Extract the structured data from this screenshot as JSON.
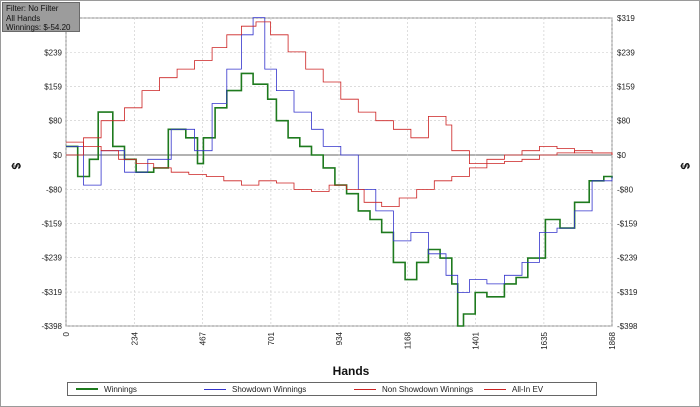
{
  "info_box": {
    "filter": "Filter: No Filter",
    "hands": "All Hands",
    "winnings": "Winnings: $-54.20"
  },
  "chart_data": {
    "type": "line",
    "title": "",
    "xlabel": "Hands",
    "ylabel": "$",
    "xlim": [
      0,
      1868
    ],
    "ylim": [
      -398,
      319
    ],
    "x_ticks": [
      0,
      234,
      467,
      701,
      934,
      1168,
      1401,
      1635,
      1868
    ],
    "y_ticks": [
      -398,
      -319,
      -239,
      -159,
      -80,
      0,
      80,
      159,
      239,
      319
    ],
    "y_tick_labels": [
      "-$398",
      "-$319",
      "-$239",
      "-$159",
      "-$80",
      "$0",
      "$80",
      "$159",
      "$239",
      "$319"
    ],
    "grid": true,
    "legend_position": "bottom",
    "series": [
      {
        "name": "Winnings",
        "color": "#1e7a1e",
        "x": [
          0,
          40,
          80,
          110,
          160,
          200,
          240,
          300,
          350,
          410,
          450,
          470,
          510,
          550,
          600,
          640,
          690,
          720,
          760,
          800,
          840,
          880,
          920,
          960,
          1000,
          1040,
          1080,
          1120,
          1160,
          1200,
          1240,
          1280,
          1320,
          1340,
          1360,
          1400,
          1440,
          1500,
          1540,
          1580,
          1640,
          1690,
          1740,
          1790,
          1840,
          1868
        ],
        "values": [
          20,
          -50,
          -10,
          100,
          20,
          -10,
          -40,
          -30,
          60,
          40,
          -20,
          40,
          110,
          150,
          190,
          165,
          130,
          80,
          40,
          20,
          0,
          -30,
          -70,
          -90,
          -130,
          -150,
          -180,
          -250,
          -290,
          -250,
          -220,
          -240,
          -300,
          -398,
          -370,
          -320,
          -330,
          -300,
          -285,
          -240,
          -150,
          -170,
          -110,
          -60,
          -50,
          -54
        ]
      },
      {
        "name": "Showdown Winnings",
        "color": "#3333cc",
        "x": [
          0,
          60,
          120,
          200,
          280,
          360,
          440,
          500,
          550,
          600,
          640,
          680,
          720,
          780,
          840,
          880,
          940,
          1000,
          1060,
          1120,
          1180,
          1240,
          1300,
          1340,
          1380,
          1440,
          1500,
          1560,
          1620,
          1680,
          1740,
          1800,
          1868
        ],
        "values": [
          20,
          -70,
          10,
          -40,
          -10,
          60,
          10,
          120,
          200,
          280,
          320,
          200,
          150,
          100,
          60,
          20,
          0,
          -80,
          -130,
          -200,
          -180,
          -230,
          -280,
          -320,
          -290,
          -300,
          -280,
          -250,
          -180,
          -170,
          -130,
          -60,
          -50
        ]
      },
      {
        "name": "Non Showdown Winnings",
        "color": "#cc2222",
        "x": [
          0,
          60,
          120,
          200,
          260,
          320,
          380,
          440,
          500,
          550,
          600,
          650,
          700,
          760,
          820,
          880,
          940,
          1000,
          1060,
          1120,
          1180,
          1240,
          1300,
          1320,
          1380,
          1440,
          1500,
          1560,
          1620,
          1680,
          1740,
          1800,
          1868
        ],
        "values": [
          0,
          40,
          80,
          110,
          150,
          180,
          200,
          220,
          250,
          280,
          300,
          310,
          280,
          240,
          200,
          170,
          130,
          100,
          80,
          60,
          40,
          90,
          70,
          10,
          -20,
          -10,
          0,
          10,
          20,
          15,
          5,
          5,
          0
        ]
      },
      {
        "name": "All-In EV",
        "color": "#cc2222",
        "x": [
          0,
          60,
          120,
          180,
          240,
          300,
          360,
          420,
          480,
          540,
          600,
          660,
          720,
          780,
          840,
          900,
          960,
          1020,
          1080,
          1140,
          1200,
          1260,
          1320,
          1380,
          1440,
          1500,
          1560,
          1620,
          1680,
          1740,
          1800,
          1868
        ],
        "values": [
          30,
          20,
          10,
          -10,
          -20,
          -30,
          -40,
          -45,
          -50,
          -60,
          -70,
          -60,
          -65,
          -80,
          -85,
          -70,
          -80,
          -110,
          -120,
          -100,
          -80,
          -60,
          -50,
          -30,
          -20,
          -15,
          -10,
          0,
          5,
          10,
          5,
          0
        ]
      }
    ]
  }
}
